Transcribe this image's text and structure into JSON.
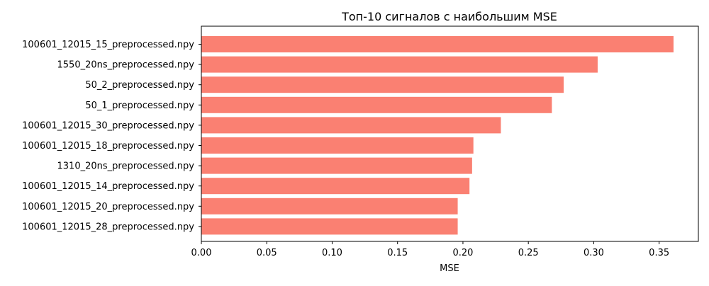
{
  "chart_data": {
    "type": "bar",
    "orientation": "horizontal",
    "title": "Топ-10 сигналов с наибольшим MSE",
    "xlabel": "MSE",
    "ylabel": "",
    "xlim": [
      0,
      0.38
    ],
    "x_ticks": [
      0.0,
      0.05,
      0.1,
      0.15,
      0.2,
      0.25,
      0.3,
      0.35
    ],
    "x_tick_labels": [
      "0.00",
      "0.05",
      "0.10",
      "0.15",
      "0.20",
      "0.25",
      "0.30",
      "0.35"
    ],
    "grid": false,
    "bar_color": "#fa8072",
    "categories": [
      "100601_12015_15_preprocessed.npy",
      "1550_20ns_preprocessed.npy",
      "50_2_preprocessed.npy",
      "50_1_preprocessed.npy",
      "100601_12015_30_preprocessed.npy",
      "100601_12015_18_preprocessed.npy",
      "1310_20ns_preprocessed.npy",
      "100601_12015_14_preprocessed.npy",
      "100601_12015_20_preprocessed.npy",
      "100601_12015_28_preprocessed.npy"
    ],
    "values": [
      0.361,
      0.303,
      0.277,
      0.268,
      0.229,
      0.208,
      0.207,
      0.205,
      0.196,
      0.196
    ]
  }
}
